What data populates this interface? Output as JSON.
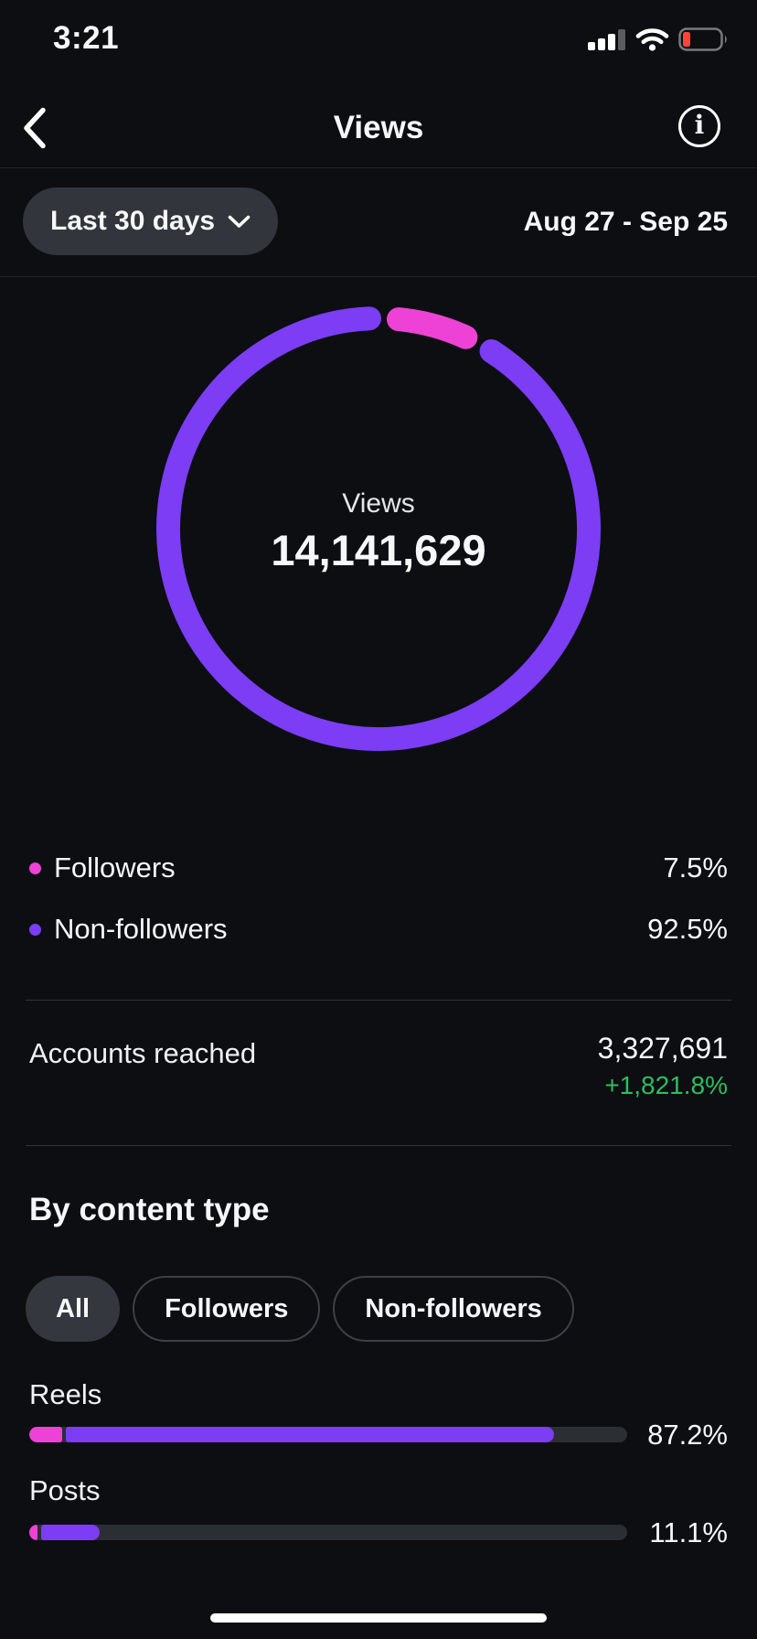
{
  "status_bar": {
    "time": "3:21"
  },
  "header": {
    "title": "Views"
  },
  "filter_bar": {
    "period_label": "Last 30 days",
    "date_range": "Aug 27 - Sep 25"
  },
  "donut": {
    "center_label": "Views",
    "center_value": "14,141,629",
    "segments": [
      {
        "label": "Followers",
        "pct": 7.5,
        "color": "#ee42d6"
      },
      {
        "label": "Non-followers",
        "pct": 92.5,
        "color": "#7c3df5"
      }
    ]
  },
  "legend": [
    {
      "label": "Followers",
      "value": "7.5%",
      "color": "#ee42d6"
    },
    {
      "label": "Non-followers",
      "value": "92.5%",
      "color": "#7c3df5"
    }
  ],
  "accounts_reached": {
    "label": "Accounts reached",
    "value": "3,327,691",
    "delta": "+1,821.8%",
    "delta_color": "#2ebd5e"
  },
  "content_type": {
    "heading": "By content type",
    "filters": [
      {
        "label": "All",
        "selected": true
      },
      {
        "label": "Followers",
        "selected": false
      },
      {
        "label": "Non-followers",
        "selected": false
      }
    ],
    "rows": [
      {
        "label": "Reels",
        "value": "87.2%",
        "segments": [
          {
            "pct": 5.5,
            "color": "#ee42d6"
          },
          {
            "pct": 81.7,
            "color": "#7c3df5"
          }
        ]
      },
      {
        "label": "Posts",
        "value": "11.1%",
        "segments": [
          {
            "pct": 1.4,
            "color": "#ee42d6"
          },
          {
            "pct": 9.7,
            "color": "#7c3df5"
          }
        ]
      }
    ]
  },
  "chart_data": [
    {
      "type": "pie",
      "title": "Views",
      "center_value": "14,141,629",
      "unit": "%",
      "slices": [
        {
          "label": "Followers",
          "value": 7.5
        },
        {
          "label": "Non-followers",
          "value": 92.5
        }
      ],
      "legend_position": "below"
    },
    {
      "type": "bar",
      "title": "By content type",
      "categories": [
        "Reels",
        "Posts"
      ],
      "values": [
        87.2,
        11.1
      ],
      "unit": "%",
      "xlim": [
        0,
        100
      ]
    }
  ]
}
